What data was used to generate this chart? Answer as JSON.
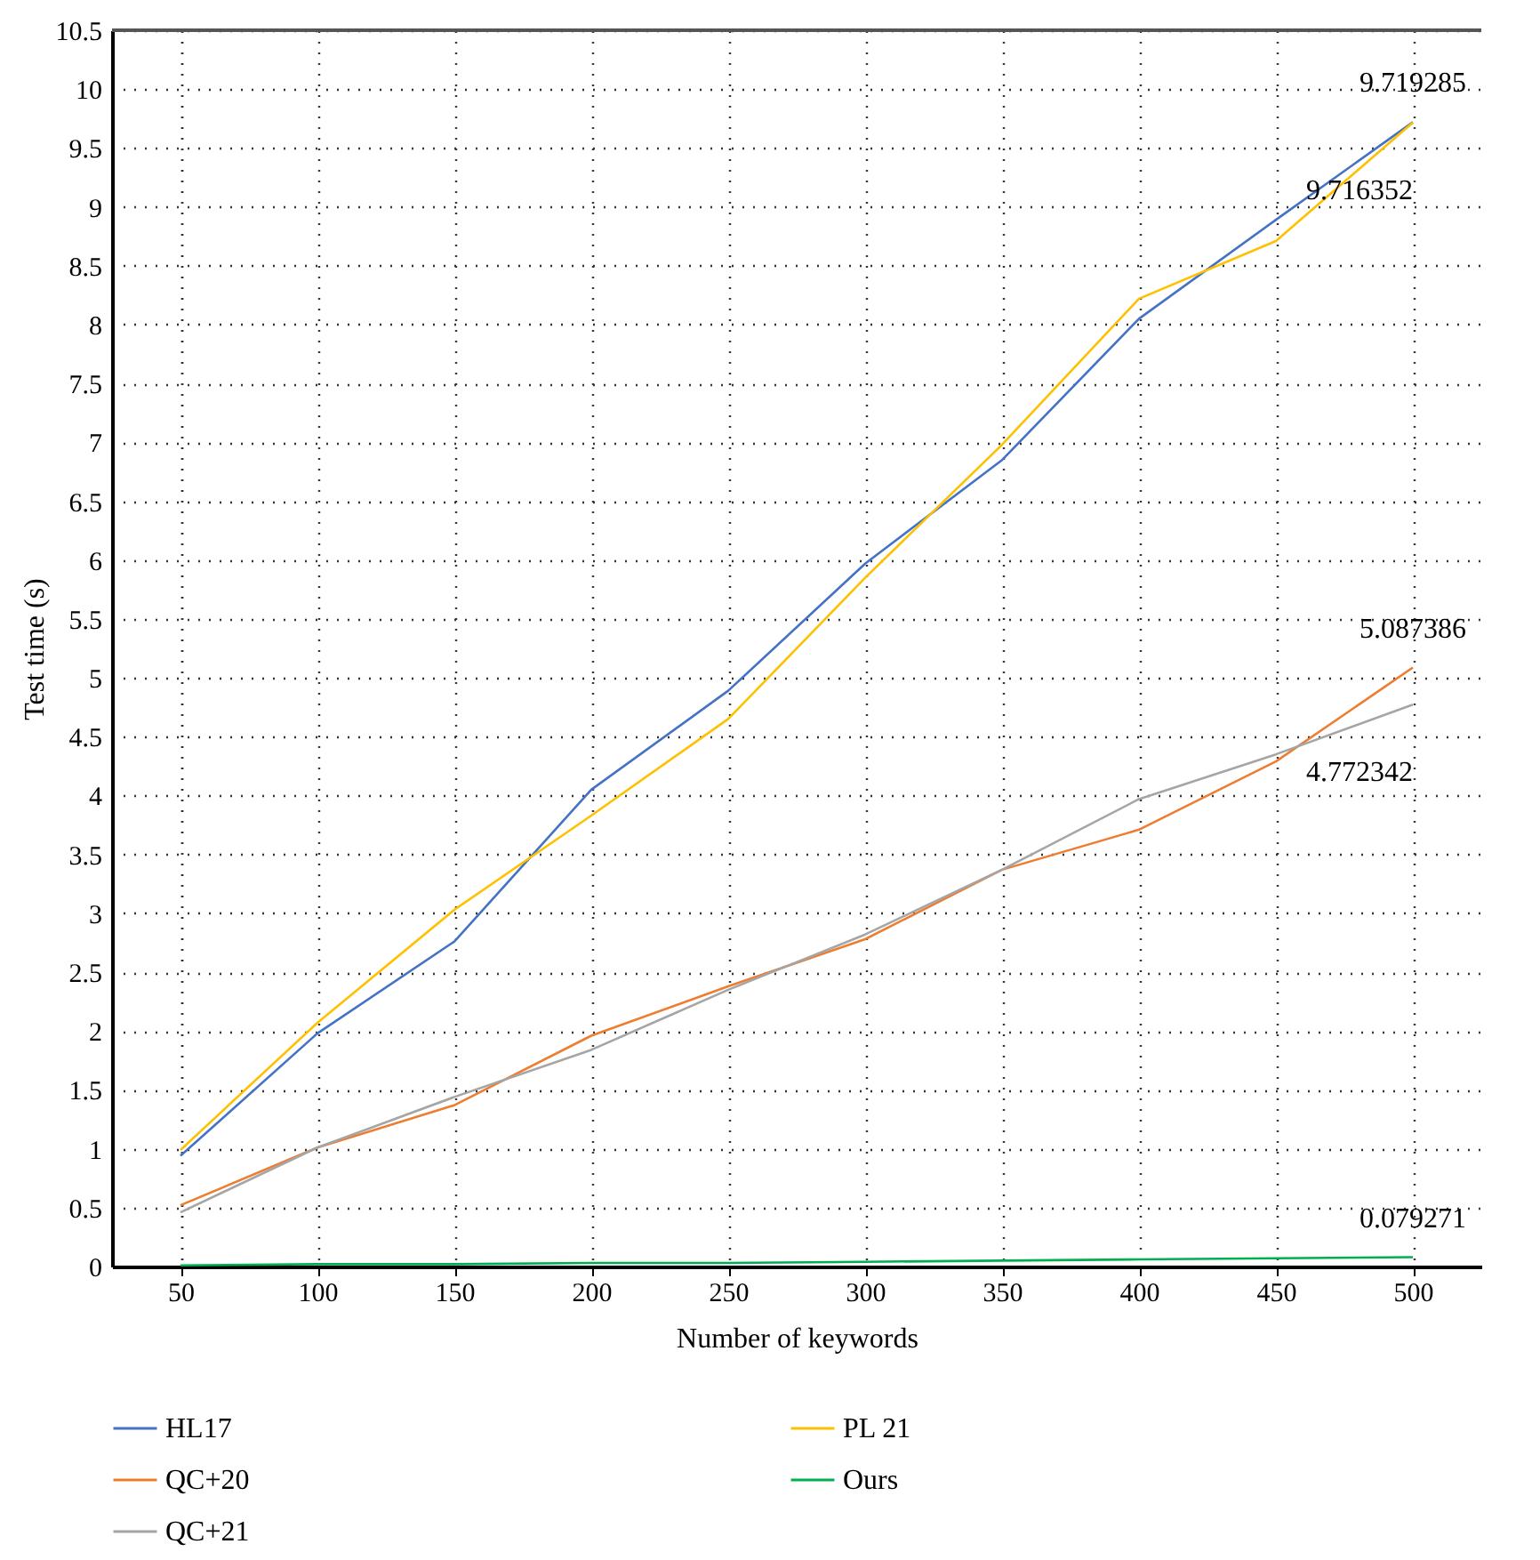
{
  "chart_data": {
    "type": "line",
    "xlabel": "Number of keywords",
    "ylabel": "Test time (s)",
    "categories": [
      "50",
      "100",
      "150",
      "200",
      "250",
      "300",
      "350",
      "400",
      "450",
      "500"
    ],
    "series": [
      {
        "name": "HL17",
        "color": "#4472c4",
        "values": [
          0.94,
          1.98,
          2.76,
          4.05,
          4.89,
          5.97,
          6.85,
          8.05,
          8.89,
          9.719285
        ],
        "value_labels": [
          null,
          null,
          null,
          null,
          null,
          null,
          null,
          null,
          null,
          "9.719285"
        ]
      },
      {
        "name": "PL 21",
        "color": "#ffc000",
        "values": [
          0.99,
          2.07,
          3.03,
          3.83,
          4.65,
          5.85,
          6.98,
          8.22,
          8.71,
          9.716352
        ],
        "value_labels": [
          null,
          null,
          null,
          null,
          null,
          null,
          null,
          null,
          null,
          "9.716352"
        ]
      },
      {
        "name": "QC+20",
        "color": "#ed7d31",
        "values": [
          0.52,
          1.01,
          1.37,
          1.96,
          2.38,
          2.78,
          3.37,
          3.71,
          4.29,
          5.087386
        ],
        "value_labels": [
          null,
          null,
          null,
          null,
          null,
          null,
          null,
          null,
          null,
          "5.087386"
        ]
      },
      {
        "name": "Ours",
        "color": "#00b050",
        "values": [
          0.01,
          0.02,
          0.02,
          0.03,
          0.03,
          0.04,
          0.05,
          0.06,
          0.07,
          0.079271
        ],
        "value_labels": [
          null,
          null,
          null,
          null,
          null,
          null,
          null,
          null,
          null,
          "0.079271"
        ]
      },
      {
        "name": "QC+21",
        "color": "#a5a5a5",
        "values": [
          0.46,
          1.01,
          1.44,
          1.84,
          2.35,
          2.82,
          3.37,
          3.97,
          4.35,
          4.772342
        ],
        "value_labels": [
          null,
          null,
          null,
          null,
          null,
          null,
          null,
          null,
          null,
          "4.772342"
        ]
      }
    ],
    "ylim": [
      0,
      10.5
    ],
    "yticks": [
      0,
      0.5,
      1,
      1.5,
      2,
      2.5,
      3,
      3.5,
      4,
      4.5,
      5,
      5.5,
      6,
      6.5,
      7,
      7.5,
      8,
      8.5,
      9,
      9.5,
      10,
      10.5
    ],
    "grid": true,
    "legend": "bottom",
    "line_style": "solid"
  }
}
